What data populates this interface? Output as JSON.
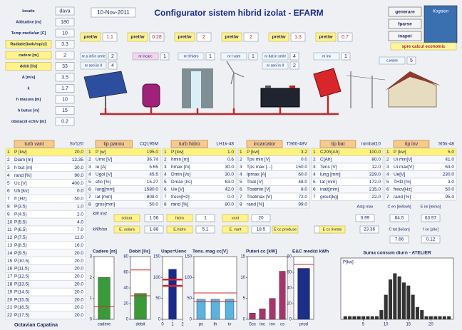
{
  "header": {
    "date": "10-Nov-2011",
    "title": "Configurator sistem hibrid izolat - EFARM",
    "buttons": [
      "generare",
      "fparse",
      "inapoi"
    ],
    "logo": "Kogaion",
    "link": "spre calcul economic"
  },
  "site": [
    [
      "locatie",
      "dava"
    ],
    [
      "Altitudine [m]",
      "180"
    ],
    [
      "Temp medie/an [C]",
      "10"
    ],
    [
      "Radiatie[kwh/mp/zi]",
      "3.3"
    ],
    [
      "cadere [m]",
      "2"
    ],
    [
      "debit [l/s]",
      "33"
    ],
    [
      "A [m/s]",
      "3.5"
    ],
    [
      "k",
      "1.7"
    ],
    [
      "h masura [m]",
      "10"
    ],
    [
      "h butuc [m]",
      "15"
    ],
    [
      "obstacol echiv [m]",
      "0.2"
    ]
  ],
  "prices": [
    {
      "label": "pret/w",
      "value": "1.1"
    },
    {
      "label": "pret/w",
      "value": "0.28"
    },
    {
      "label": "pret/w",
      "value": "2"
    },
    {
      "label": "pret/w",
      "value": "2"
    },
    {
      "label": "pret/w",
      "value": "1.3"
    },
    {
      "label": "pret/w",
      "value": "0.7"
    }
  ],
  "counts": [
    {
      "label": "nr p.inf in serie",
      "value": "2"
    },
    {
      "label": "nr serii in II",
      "value": "4"
    },
    {
      "label": "nr incarc",
      "value": "1"
    },
    {
      "label": "nr tl hidro",
      "value": "1"
    },
    {
      "label": "nr t vant",
      "value": "1"
    },
    {
      "label": "nr bat in serie",
      "value": "4"
    },
    {
      "label": "nr serii in II",
      "value": "2"
    },
    {
      "label": "nr inv",
      "value": "1"
    },
    {
      "label": "c.iesire",
      "value": "5"
    }
  ],
  "tables": [
    {
      "title": "turb vant",
      "model": "SV120",
      "rows": [
        [
          "1",
          "P [kw]",
          "20.0"
        ],
        [
          "2",
          "Diam [m]",
          "12.35"
        ],
        [
          "3",
          "h but [m]",
          "30.0"
        ],
        [
          "4",
          "rand [%]",
          "90.0"
        ],
        [
          "5",
          "Uc [V]",
          "400.0"
        ],
        [
          "6",
          "Ub [kv]",
          "0.0"
        ],
        [
          "7",
          "fr [Hz]",
          "50.0"
        ],
        [
          "8",
          "P(3.5)",
          "1.0"
        ],
        [
          "9",
          "P(4.5)",
          "2.0"
        ],
        [
          "10",
          "P(5.5)",
          "4.0"
        ],
        [
          "11",
          "P(6.5)",
          "7.0"
        ],
        [
          "12",
          "P(7.5)",
          "11.0"
        ],
        [
          "13",
          "P(8.5)",
          "16.0"
        ],
        [
          "14",
          "P(9.5)",
          "20.0"
        ],
        [
          "15",
          "P(10.5)",
          "20.0"
        ],
        [
          "16",
          "P(11.5)",
          "20.0"
        ],
        [
          "17",
          "P(12.5)",
          "20.0"
        ],
        [
          "18",
          "P(13.5)",
          "20.0"
        ],
        [
          "19",
          "P(14.5)",
          "20.0"
        ],
        [
          "20",
          "P(15.5)",
          "20.0"
        ],
        [
          "21",
          "P(16.5)",
          "20.0"
        ],
        [
          "22",
          "P(17.5)",
          "20.0"
        ]
      ]
    },
    {
      "title": "tip panou",
      "model": "CQ195M",
      "rows": [
        [
          "1",
          "P [w]",
          "195.0"
        ],
        [
          "2",
          "Umx [V]",
          "36.74"
        ],
        [
          "3",
          "Ie [A]",
          "5.65"
        ],
        [
          "4",
          "Ugol [V]",
          "45.5"
        ],
        [
          "5",
          "efic [%]",
          "15.27"
        ],
        [
          "6",
          "lung[mm]",
          "1580.0"
        ],
        [
          "7",
          "lat [mm]",
          "808.0"
        ],
        [
          "8",
          "gros[mm]",
          "50.0"
        ]
      ]
    },
    {
      "title": "turb hidro",
      "model": "LH1k-48",
      "rows": [
        [
          "1",
          "P [kw]",
          "1.0"
        ],
        [
          "2",
          "hmin [m]",
          "0.6"
        ],
        [
          "3",
          "hmax [m]",
          "30.0"
        ],
        [
          "4",
          "Dmin [l/s]",
          "30.0"
        ],
        [
          "5",
          "Dmax [l/s]",
          "63.0"
        ],
        [
          "6",
          "Ue [V]",
          "42.0"
        ],
        [
          "7",
          "frecv[Hz]",
          "0.0"
        ],
        [
          "8",
          "rand [%]",
          "90.0"
        ]
      ]
    },
    {
      "title": "incarcator",
      "model": "TS60-48V",
      "rows": [
        [
          "1",
          "P [kw]",
          "3.2"
        ],
        [
          "2",
          "Tps min [V]",
          "0.0"
        ],
        [
          "3",
          "Tps max [...]",
          "150.0"
        ],
        [
          "4",
          "Ipmax [A]",
          "60.0"
        ],
        [
          "5",
          "Tbat [V]",
          "48.0"
        ],
        [
          "6",
          "Tbatmin [V]",
          "8.0"
        ],
        [
          "7",
          "Tbatmax [V]",
          "72.0"
        ],
        [
          "8",
          "rand [%]",
          "99.0"
        ]
      ]
    },
    {
      "title": "tip bat",
      "model": "rombat10",
      "rows": [
        [
          "1",
          "C20h[Ah]",
          "100.0"
        ],
        [
          "2",
          "C[Ah]",
          "80.0"
        ],
        [
          "3",
          "Tens [V]",
          "12.0"
        ],
        [
          "4",
          "lung [mm]",
          "329.0"
        ],
        [
          "5",
          "lat [mm]",
          "172.0"
        ],
        [
          "6",
          "inalt[mm]",
          "215.0"
        ],
        [
          "7",
          "greut[kg]",
          "22.0"
        ]
      ]
    },
    {
      "title": "tip inv",
      "model": "SI5k-48",
      "rows": [
        [
          "1",
          "P [kw]",
          "5.0"
        ],
        [
          "2",
          "Ui min[V]",
          "41.0"
        ],
        [
          "3",
          "Ui max[V]",
          "63.0"
        ],
        [
          "4",
          "Ue[V]",
          "230.0"
        ],
        [
          "5",
          "THD [%]",
          "3.0"
        ],
        [
          "6",
          "frecv[Hz]",
          "50.0"
        ],
        [
          "7",
          "rand [%]",
          "95.0"
        ]
      ]
    }
  ],
  "summary": [
    {
      "label": "kW inst"
    },
    {
      "label": "solara",
      "value": "1.56"
    },
    {
      "label": "hidro",
      "value": "1"
    },
    {
      "label": "vant",
      "value": "20"
    },
    {
      "label": "kWh/an"
    },
    {
      "label": "E. solara",
      "value": "1.88"
    },
    {
      "label": "E.hidro",
      "value": "5.1"
    },
    {
      "label": "E. vant",
      "value": "18.5"
    },
    {
      "label": "E cc produse",
      "value": "8.1"
    },
    {
      "label": "E cc livrate",
      "value": "23.36"
    },
    {
      "label": "Astg max",
      "value": "0.99"
    },
    {
      "label": "C en [lei/kwh]",
      "value": "64.5"
    },
    {
      "label": "E ini [lei/an]",
      "value": "63.97"
    },
    {
      "label": "C tot [lei/an]",
      "value": "7.66"
    },
    {
      "label": "f ce [zile]",
      "value": "0.12"
    }
  ],
  "charts": [
    {
      "title": "Cadere [m]",
      "type": "bar",
      "categories": [
        "cadere"
      ],
      "values": [
        2
      ],
      "color": "#3a9a3a",
      "ylim": [
        0,
        3
      ],
      "yticks": [
        0,
        1,
        2,
        3
      ],
      "lines": [
        0.6
      ]
    },
    {
      "title": "Debit [l/s]",
      "type": "bar",
      "categories": [
        "debit"
      ],
      "values": [
        33
      ],
      "color": "#3a9a3a",
      "ylim": [
        0,
        80
      ],
      "yticks": [
        0,
        20,
        40,
        60,
        80
      ],
      "lines": [
        63,
        30
      ]
    },
    {
      "title": "Uaps=Uenc",
      "type": "bar",
      "x": [
        1
      ],
      "values": [
        120
      ],
      "color": "#1a2a8c",
      "xlim": [
        0,
        2
      ],
      "xticks": [
        0,
        1,
        2
      ],
      "ylim": [
        0,
        150
      ],
      "yticks": [
        0,
        50,
        100,
        150
      ],
      "lines": [
        80,
        95
      ]
    },
    {
      "title": "Tens. mag cc[V]",
      "type": "bar",
      "categories": [
        "ps",
        "th",
        "tv"
      ],
      "values": [
        48,
        48,
        48
      ],
      "color": "#5ab4e0",
      "ylim": [
        0,
        150
      ],
      "yticks": [
        0,
        50,
        100,
        150
      ],
      "lines": [
        42,
        63
      ]
    },
    {
      "title": "Puteri cc [kW]",
      "type": "bar",
      "categories": [
        "Scc",
        "inc",
        "inv",
        "cs"
      ],
      "values": [
        1.5,
        2.5,
        5,
        11.5
      ],
      "color": "#b0306a",
      "ylim": [
        0,
        15
      ],
      "yticks": [
        0,
        5,
        10,
        15
      ]
    },
    {
      "title": "E&C med/zi kWh",
      "type": "bar",
      "categories": [
        "prod"
      ],
      "values": [
        65
      ],
      "color": "#1c2d8a",
      "ylim": [
        0,
        80
      ],
      "yticks": [
        0,
        20,
        40,
        60,
        80
      ],
      "lines": [
        70
      ]
    },
    {
      "title": "Suma consum diurn - ATELIER",
      "type": "bar",
      "ylabel": "P[kw]",
      "x": [
        1,
        2,
        3,
        4,
        5,
        6,
        7,
        8,
        9,
        10,
        11,
        12,
        13,
        14,
        15,
        16,
        17,
        18,
        19,
        20,
        21,
        22,
        23,
        24
      ],
      "values": [
        0.5,
        0.5,
        0.5,
        0.5,
        0.5,
        0.5,
        0.5,
        0.5,
        1.5,
        4,
        6.5,
        7.5,
        7,
        6,
        5.5,
        4,
        2,
        1.5,
        0.5,
        0.5,
        0.5,
        0.5,
        0.5,
        0.5
      ],
      "color": "#333333",
      "xlim": [
        0,
        25
      ],
      "xticks": [
        5,
        10,
        15,
        20
      ],
      "ylim": [
        0,
        10
      ]
    }
  ],
  "author": "Octavian Capatina"
}
